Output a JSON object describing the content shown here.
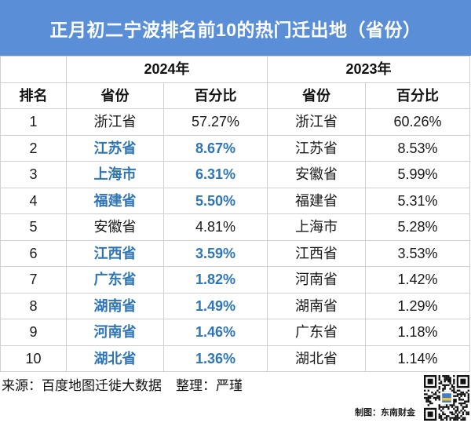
{
  "title": "正月初二宁波排名前10的热门迁出地（省份）",
  "colors": {
    "banner": "#5a8fd8",
    "title_text": "#ffffff",
    "highlight": "#2e75b6",
    "grid": "#d0d0d0"
  },
  "table": {
    "year_headers": [
      "2024年",
      "2023年"
    ],
    "column_headers": [
      "排名",
      "省份",
      "百分比",
      "省份",
      "百分比"
    ],
    "rows": [
      {
        "rank": "1",
        "province_2024": "浙江省",
        "percent_2024": "57.27%",
        "province_2023": "浙江省",
        "percent_2023": "60.26%",
        "highlight": false
      },
      {
        "rank": "2",
        "province_2024": "江苏省",
        "percent_2024": "8.67%",
        "province_2023": "江苏省",
        "percent_2023": "8.53%",
        "highlight": true
      },
      {
        "rank": "3",
        "province_2024": "上海市",
        "percent_2024": "6.31%",
        "province_2023": "安徽省",
        "percent_2023": "5.99%",
        "highlight": true
      },
      {
        "rank": "4",
        "province_2024": "福建省",
        "percent_2024": "5.50%",
        "province_2023": "福建省",
        "percent_2023": "5.31%",
        "highlight": true
      },
      {
        "rank": "5",
        "province_2024": "安徽省",
        "percent_2024": "4.81%",
        "province_2023": "上海市",
        "percent_2023": "5.28%",
        "highlight": false
      },
      {
        "rank": "6",
        "province_2024": "江西省",
        "percent_2024": "3.59%",
        "province_2023": "江西省",
        "percent_2023": "3.53%",
        "highlight": true
      },
      {
        "rank": "7",
        "province_2024": "广东省",
        "percent_2024": "1.82%",
        "province_2023": "河南省",
        "percent_2023": "1.42%",
        "highlight": true
      },
      {
        "rank": "8",
        "province_2024": "湖南省",
        "percent_2024": "1.49%",
        "province_2023": "湖南省",
        "percent_2023": "1.29%",
        "highlight": true
      },
      {
        "rank": "9",
        "province_2024": "河南省",
        "percent_2024": "1.46%",
        "province_2023": "广东省",
        "percent_2023": "1.18%",
        "highlight": true
      },
      {
        "rank": "10",
        "province_2024": "湖北省",
        "percent_2024": "1.36%",
        "province_2023": "湖北省",
        "percent_2023": "1.14%",
        "highlight": true
      }
    ]
  },
  "footer": {
    "source": "来源：百度地图迁徙大数据",
    "editor": "整理：严瑾",
    "credit": "制图：东南财金"
  }
}
